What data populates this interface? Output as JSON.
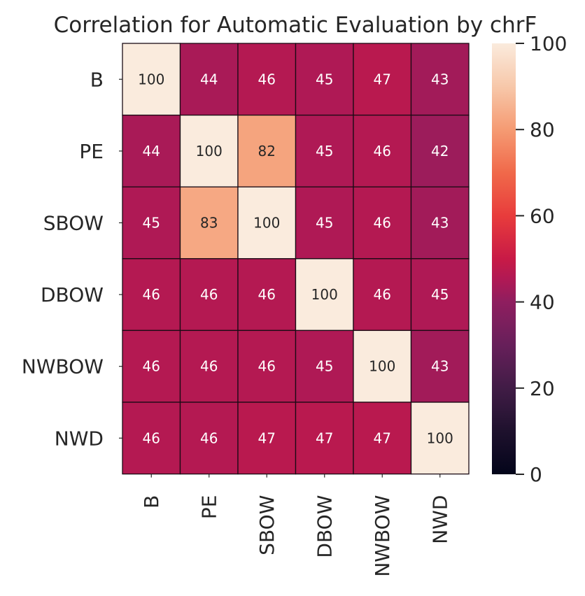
{
  "chart_data": {
    "type": "heatmap",
    "title": "Correlation for Automatic Evaluation by chrF",
    "rows": [
      "B",
      "PE",
      "SBOW",
      "DBOW",
      "NWBOW",
      "NWD"
    ],
    "columns": [
      "B",
      "PE",
      "SBOW",
      "DBOW",
      "NWBOW",
      "NWD"
    ],
    "values": [
      [
        100,
        44,
        46,
        45,
        47,
        43
      ],
      [
        44,
        100,
        82,
        45,
        46,
        42
      ],
      [
        45,
        83,
        100,
        45,
        46,
        43
      ],
      [
        46,
        46,
        46,
        100,
        46,
        45
      ],
      [
        46,
        46,
        46,
        45,
        100,
        43
      ],
      [
        46,
        46,
        47,
        47,
        47,
        100
      ]
    ],
    "colorbar": {
      "min": 0,
      "max": 100,
      "ticks": [
        0,
        20,
        40,
        60,
        80,
        100
      ],
      "colormap": "rocket"
    },
    "annotations": true,
    "cell_edge_color": "#1a0a14"
  }
}
